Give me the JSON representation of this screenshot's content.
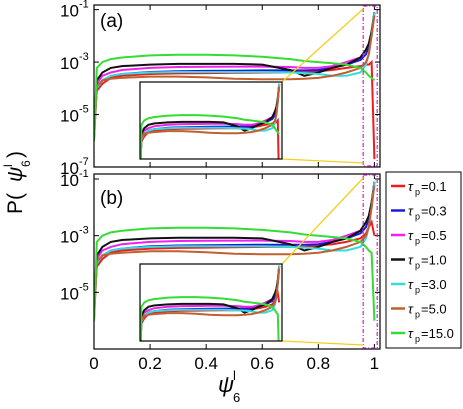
{
  "figure": {
    "ylabel_main": "P(",
    "ylabel_psi": "ψ",
    "ylabel_sup": "l",
    "ylabel_sub": "6",
    "ylabel_close": ")",
    "xlabel_psi": "ψ",
    "xlabel_sup": "l",
    "xlabel_sub": "6"
  },
  "legend": [
    {
      "tau": "τ",
      "sub": "p",
      "value": "=0.1",
      "color": "#ee1c1c"
    },
    {
      "tau": "τ",
      "sub": "p",
      "value": "=0.3",
      "color": "#1a1adc"
    },
    {
      "tau": "τ",
      "sub": "p",
      "value": "=0.5",
      "color": "#ee22ee"
    },
    {
      "tau": "τ",
      "sub": "p",
      "value": "=1.0",
      "color": "#111111"
    },
    {
      "tau": "τ",
      "sub": "p",
      "value": "=3.0",
      "color": "#33dddd"
    },
    {
      "tau": "τ",
      "sub": "p",
      "value": "=5.0",
      "color": "#c06030"
    },
    {
      "tau": "τ",
      "sub": "p",
      "value": "=15.0",
      "color": "#33dd33"
    }
  ],
  "chart_data": [
    {
      "type": "line",
      "panel_label": "(a)",
      "yscale": "log",
      "xlim": [
        0,
        1.02
      ],
      "ylim": [
        1e-07,
        0.15
      ],
      "x_ticks": [
        0,
        0.2,
        0.4,
        0.6,
        0.8,
        1
      ],
      "x_tick_labels": [
        "0",
        "0.2",
        "0.4",
        "0.6",
        "0.8",
        "1"
      ],
      "y_ticks": [
        1e-07,
        1e-05,
        0.001,
        0.1
      ],
      "y_tick_labels": [
        "10",
        "10",
        "10",
        "10"
      ],
      "y_tick_exps": [
        "-7",
        "-5",
        "-3",
        "-1"
      ],
      "x": [
        0,
        0.01,
        0.03,
        0.06,
        0.1,
        0.2,
        0.3,
        0.4,
        0.5,
        0.6,
        0.7,
        0.75,
        0.8,
        0.85,
        0.9,
        0.95,
        0.97,
        0.98,
        0.99,
        1.0
      ],
      "series": [
        {
          "name": "τp=0.1",
          "color": "#ee1c1c",
          "y": [
            3e-06,
            8e-05,
            0.00015,
            0.00025,
            0.0003,
            0.00035,
            0.00037,
            0.00038,
            0.00039,
            0.0004,
            0.0004,
            0.0004,
            0.00045,
            0.0005,
            0.0006,
            0.0007,
            0.0008,
            0.0008,
            0.001,
            2e-07
          ]
        },
        {
          "name": "τp=0.3",
          "color": "#1a1adc",
          "y": [
            2e-06,
            0.0001,
            0.0002,
            0.0003,
            0.00035,
            0.00042,
            0.00045,
            0.00046,
            0.00047,
            0.00048,
            0.00048,
            0.00048,
            0.0005,
            0.0006,
            0.0008,
            0.0012,
            0.002,
            0.004,
            0.01,
            0.08
          ]
        },
        {
          "name": "τp=0.5",
          "color": "#ee22ee",
          "y": [
            2e-06,
            0.00015,
            0.0003,
            0.0004,
            0.0005,
            0.0006,
            0.00065,
            0.00066,
            0.00067,
            0.00067,
            0.00065,
            0.0006,
            0.0006,
            0.0007,
            0.001,
            0.0015,
            0.003,
            0.005,
            0.012,
            0.08
          ]
        },
        {
          "name": "τp=1.0",
          "color": "#111111",
          "y": [
            2e-06,
            0.0002,
            0.0004,
            0.0006,
            0.0007,
            0.0008,
            0.00085,
            0.00085,
            0.00085,
            0.0008,
            0.0005,
            0.0003,
            0.0004,
            0.0006,
            0.0008,
            0.0015,
            0.003,
            0.005,
            0.015,
            0.08
          ]
        },
        {
          "name": "τp=3.0",
          "color": "#33dddd",
          "y": [
            1e-06,
            0.0001,
            0.0002,
            0.0003,
            0.00035,
            0.0004,
            0.00042,
            0.00042,
            0.00042,
            0.00042,
            0.0004,
            0.00038,
            0.00035,
            0.0003,
            0.0003,
            0.0004,
            0.0008,
            0.002,
            0.01,
            0.08
          ]
        },
        {
          "name": "τp=5.0",
          "color": "#c06030",
          "y": [
            1e-06,
            0.00012,
            0.0002,
            0.00023,
            0.00025,
            0.00028,
            0.00028,
            0.00026,
            0.00023,
            0.00022,
            0.00022,
            0.00023,
            0.00025,
            0.0003,
            0.0004,
            0.0006,
            0.001,
            0.002,
            0.01,
            0.06
          ]
        },
        {
          "name": "τp=15.0",
          "color": "#33dd33",
          "y": [
            1e-06,
            0.0006,
            0.001,
            0.0013,
            0.0015,
            0.0018,
            0.0019,
            0.0019,
            0.0018,
            0.0016,
            0.0013,
            0.0011,
            0.001,
            0.0009,
            0.0008,
            0.0006,
            0.0004,
            0.0003,
            0.00025,
            0.0002
          ]
        }
      ],
      "zoom_region_x": [
        0.96,
        1.01
      ]
    },
    {
      "type": "line",
      "panel_label": "(b)",
      "yscale": "log",
      "xlim": [
        0,
        1.02
      ],
      "ylim": [
        1e-07,
        0.15
      ],
      "x_ticks": [
        0,
        0.2,
        0.4,
        0.6,
        0.8,
        1
      ],
      "x_tick_labels": [
        "0",
        "0.2",
        "0.4",
        "0.6",
        "0.8",
        "1"
      ],
      "y_ticks": [
        1e-05,
        0.001,
        0.1
      ],
      "y_tick_labels": [
        "10",
        "10",
        "10"
      ],
      "y_tick_exps": [
        "-5",
        "-3",
        "-1"
      ],
      "x": [
        0,
        0.01,
        0.03,
        0.06,
        0.1,
        0.2,
        0.3,
        0.4,
        0.5,
        0.6,
        0.7,
        0.75,
        0.8,
        0.85,
        0.9,
        0.95,
        0.97,
        0.98,
        0.99,
        1.0
      ],
      "series": [
        {
          "name": "τp=0.1",
          "color": "#ee1c1c",
          "y": [
            2e-06,
            8e-05,
            0.00015,
            0.00025,
            0.0003,
            0.00035,
            0.00037,
            0.00038,
            0.00039,
            0.0004,
            0.0004,
            0.0004,
            0.00045,
            0.0005,
            0.0006,
            0.0008,
            0.0012,
            0.002,
            0.003,
            0.001
          ]
        },
        {
          "name": "τp=0.3",
          "color": "#1a1adc",
          "y": [
            2e-06,
            0.0001,
            0.0002,
            0.0003,
            0.00035,
            0.00042,
            0.00045,
            0.00046,
            0.00047,
            0.00048,
            0.00048,
            0.00048,
            0.0005,
            0.0006,
            0.0008,
            0.0012,
            0.002,
            0.004,
            0.01,
            0.08
          ]
        },
        {
          "name": "τp=0.5",
          "color": "#ee22ee",
          "y": [
            2e-06,
            0.00015,
            0.0003,
            0.0004,
            0.0005,
            0.0006,
            0.00065,
            0.00066,
            0.00067,
            0.00067,
            0.00065,
            0.0006,
            0.0006,
            0.0007,
            0.001,
            0.0015,
            0.003,
            0.005,
            0.012,
            0.08
          ]
        },
        {
          "name": "τp=1.0",
          "color": "#111111",
          "y": [
            2e-06,
            0.0002,
            0.0004,
            0.0006,
            0.0007,
            0.0008,
            0.00085,
            0.00085,
            0.00085,
            0.0008,
            0.0005,
            0.0003,
            0.0004,
            0.0006,
            0.0008,
            0.0015,
            0.003,
            0.005,
            0.015,
            0.08
          ]
        },
        {
          "name": "τp=3.0",
          "color": "#33dddd",
          "y": [
            1e-06,
            0.0001,
            0.0002,
            0.0003,
            0.00035,
            0.0004,
            0.00042,
            0.00042,
            0.00042,
            0.00042,
            0.0004,
            0.00038,
            0.00035,
            0.0003,
            0.0003,
            0.0004,
            0.0008,
            0.002,
            0.01,
            0.08
          ]
        },
        {
          "name": "τp=5.0",
          "color": "#c06030",
          "y": [
            1e-06,
            0.00012,
            0.0002,
            0.00023,
            0.00025,
            0.00028,
            0.00028,
            0.00026,
            0.00023,
            0.00022,
            0.00022,
            0.00023,
            0.00025,
            0.0003,
            0.0004,
            0.0006,
            0.001,
            0.002,
            0.01,
            0.06
          ]
        },
        {
          "name": "τp=15.0",
          "color": "#33dd33",
          "y": [
            1e-06,
            0.0006,
            0.001,
            0.0013,
            0.0015,
            0.0018,
            0.0019,
            0.0019,
            0.0018,
            0.0016,
            0.0013,
            0.0011,
            0.001,
            0.0009,
            0.0008,
            0.0006,
            0.0004,
            0.0003,
            0.00025,
            1e-06
          ]
        }
      ],
      "zoom_region_x": [
        0.96,
        1.01
      ]
    }
  ]
}
